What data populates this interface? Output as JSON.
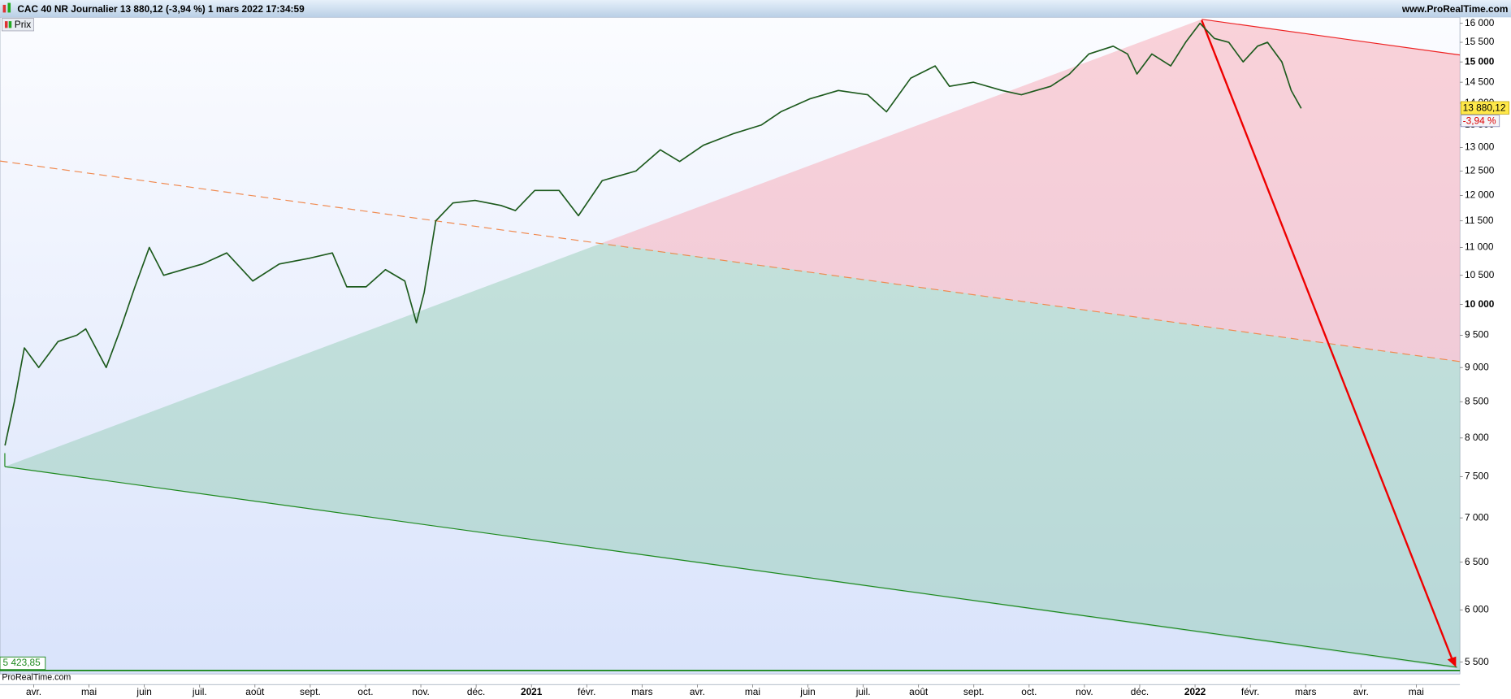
{
  "chart_data": {
    "type": "line",
    "title": "CAC 40 NR Journalier 13 880,12 (-3,94 %) 1 mars 2022 17:34:59",
    "source": "www.ProRealTime.com",
    "watermark": "ProRealTime.com",
    "series": [
      {
        "name": "Prix",
        "color": "#1d5a1d",
        "x": [
          0.48,
          0.65,
          0.83,
          1.09,
          1.44,
          1.78,
          1.94,
          2.31,
          2.57,
          2.83,
          3.09,
          3.35,
          3.7,
          4.05,
          4.49,
          4.96,
          5.44,
          5.97,
          6.4,
          6.66,
          7.01,
          7.36,
          7.71,
          7.92,
          8.06,
          8.27,
          8.58,
          8.98,
          9.45,
          9.71,
          10.06,
          10.5,
          10.85,
          11.28,
          11.89,
          12.33,
          12.68,
          13.11,
          13.64,
          14.16,
          14.51,
          15.03,
          15.55,
          16.08,
          16.42,
          16.86,
          17.3,
          17.56,
          17.99,
          18.51,
          18.86,
          19.39,
          19.73,
          20.08,
          20.52,
          20.78,
          20.95,
          21.22,
          21.56,
          21.83,
          22.09,
          22.35,
          22.61,
          22.87,
          23.13,
          23.31,
          23.57,
          23.74,
          23.92
        ],
        "values": [
          7900,
          8500,
          9300,
          9000,
          9400,
          9500,
          9600,
          9000,
          9600,
          10300,
          11000,
          10500,
          10600,
          10700,
          10900,
          10400,
          10700,
          10800,
          10900,
          10300,
          10300,
          10600,
          10400,
          9700,
          10200,
          11500,
          11850,
          11900,
          11800,
          11700,
          12100,
          12100,
          11600,
          12300,
          12500,
          12950,
          12700,
          13050,
          13300,
          13500,
          13800,
          14100,
          14300,
          14200,
          13800,
          14600,
          14900,
          14400,
          14500,
          14300,
          14200,
          14400,
          14700,
          15200,
          15400,
          15200,
          14700,
          15200,
          14900,
          15500,
          16000,
          15600,
          15500,
          15000,
          15400,
          15500,
          15000,
          14300,
          13880.12
        ]
      }
    ],
    "last_price": {
      "value": 13880.12,
      "label": "13 880,12"
    },
    "change_label": "-3,94 %",
    "hline": {
      "value": 5423.85,
      "label": "5 423,85",
      "color": "#1f8a1f"
    },
    "log_scale": true,
    "xlim": [
      0.39,
      26.79
    ],
    "xticks": [
      {
        "value": 1,
        "label": "avr."
      },
      {
        "value": 2,
        "label": "mai"
      },
      {
        "value": 3,
        "label": "juin"
      },
      {
        "value": 4,
        "label": "juil."
      },
      {
        "value": 5,
        "label": "août"
      },
      {
        "value": 6,
        "label": "sept."
      },
      {
        "value": 7,
        "label": "oct."
      },
      {
        "value": 8,
        "label": "nov."
      },
      {
        "value": 9,
        "label": "déc."
      },
      {
        "value": 10,
        "label": "2021"
      },
      {
        "value": 11,
        "label": "févr."
      },
      {
        "value": 12,
        "label": "mars"
      },
      {
        "value": 13,
        "label": "avr."
      },
      {
        "value": 14,
        "label": "mai"
      },
      {
        "value": 15,
        "label": "juin"
      },
      {
        "value": 16,
        "label": "juil."
      },
      {
        "value": 17,
        "label": "août"
      },
      {
        "value": 18,
        "label": "sept."
      },
      {
        "value": 19,
        "label": "oct."
      },
      {
        "value": 20,
        "label": "nov."
      },
      {
        "value": 21,
        "label": "déc."
      },
      {
        "value": 22,
        "label": "2022"
      },
      {
        "value": 23,
        "label": "févr."
      },
      {
        "value": 24,
        "label": "mars"
      },
      {
        "value": 25,
        "label": "avr."
      },
      {
        "value": 26,
        "label": "mai"
      }
    ],
    "ylim": [
      5410,
      16160
    ],
    "yticks": [
      {
        "value": 16000,
        "label": "16 000"
      },
      {
        "value": 15500,
        "label": "15 500"
      },
      {
        "value": 15000,
        "label": "15 000"
      },
      {
        "value": 14500,
        "label": "14 500"
      },
      {
        "value": 14000,
        "label": "14 000"
      },
      {
        "value": 13500,
        "label": "13 500"
      },
      {
        "value": 13000,
        "label": "13 000"
      },
      {
        "value": 12500,
        "label": "12 500"
      },
      {
        "value": 12000,
        "label": "12 000"
      },
      {
        "value": 11500,
        "label": "11 500"
      },
      {
        "value": 11000,
        "label": "11 000"
      },
      {
        "value": 10500,
        "label": "10 500"
      },
      {
        "value": 10000,
        "label": "10 000"
      },
      {
        "value": 9500,
        "label": "9 500"
      },
      {
        "value": 9000,
        "label": "9 000"
      },
      {
        "value": 8500,
        "label": "8 500"
      },
      {
        "value": 8000,
        "label": "8 000"
      },
      {
        "value": 7500,
        "label": "7 500"
      },
      {
        "value": 7000,
        "label": "7 000"
      },
      {
        "value": 6500,
        "label": "6 500"
      },
      {
        "value": 6000,
        "label": "6 000"
      },
      {
        "value": 5500,
        "label": "5 500"
      }
    ]
  }
}
